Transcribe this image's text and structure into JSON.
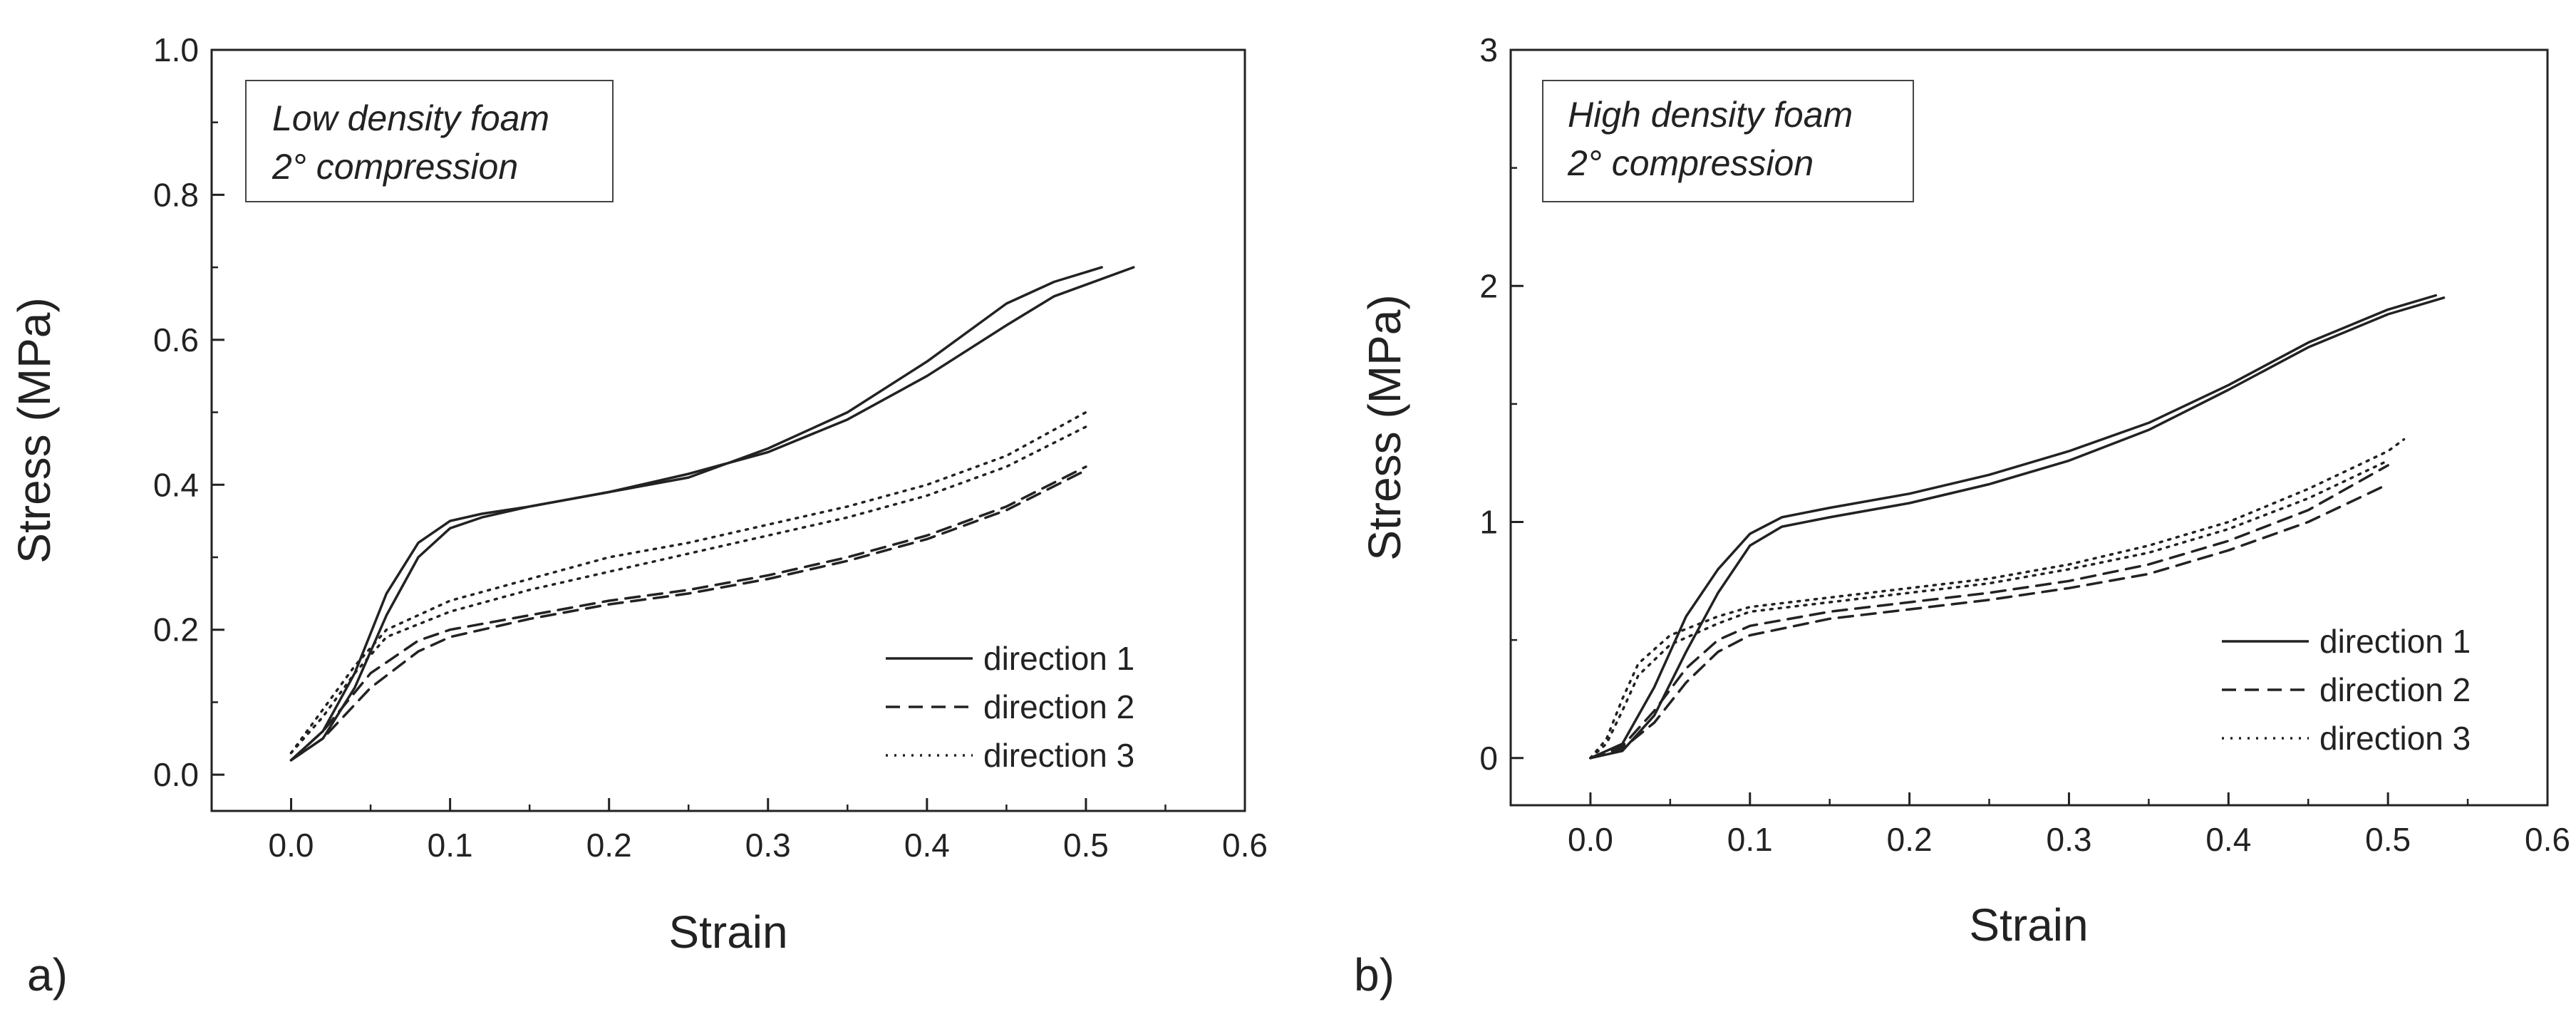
{
  "chart_data": [
    {
      "type": "line",
      "panel_label": "a)",
      "annotation": [
        "Low density foam",
        "2° compression"
      ],
      "xlabel": "Strain",
      "ylabel": "Stress (MPa)",
      "xlim": [
        -0.05,
        0.6
      ],
      "ylim": [
        -0.05,
        1.0
      ],
      "x_ticks": [
        0.0,
        0.1,
        0.2,
        0.3,
        0.4,
        0.5,
        0.6
      ],
      "x_tick_labels": [
        "0.0",
        "0.1",
        "0.2",
        "0.3",
        "0.4",
        "0.5",
        "0.6"
      ],
      "y_ticks": [
        0.0,
        0.2,
        0.4,
        0.6,
        0.8,
        1.0
      ],
      "y_tick_labels": [
        "0.0",
        "0.2",
        "0.4",
        "0.6",
        "0.8",
        "1.0"
      ],
      "legend": {
        "position": "bottom-right",
        "entries": [
          "direction 1",
          "direction 2",
          "direction 3"
        ]
      },
      "series": [
        {
          "name": "direction 1",
          "style": "solid",
          "replicate": 1,
          "x": [
            0.0,
            0.02,
            0.04,
            0.06,
            0.08,
            0.1,
            0.12,
            0.15,
            0.2,
            0.25,
            0.3,
            0.35,
            0.4,
            0.45,
            0.48,
            0.51
          ],
          "y": [
            0.02,
            0.06,
            0.14,
            0.25,
            0.32,
            0.35,
            0.36,
            0.37,
            0.39,
            0.41,
            0.45,
            0.5,
            0.57,
            0.65,
            0.68,
            0.7
          ]
        },
        {
          "name": "direction 1",
          "style": "solid",
          "replicate": 2,
          "x": [
            0.0,
            0.02,
            0.04,
            0.06,
            0.08,
            0.1,
            0.12,
            0.15,
            0.2,
            0.25,
            0.3,
            0.35,
            0.4,
            0.45,
            0.48,
            0.53
          ],
          "y": [
            0.02,
            0.05,
            0.12,
            0.22,
            0.3,
            0.34,
            0.355,
            0.37,
            0.39,
            0.415,
            0.445,
            0.49,
            0.55,
            0.62,
            0.66,
            0.7
          ]
        },
        {
          "name": "direction 2",
          "style": "dashed",
          "replicate": 1,
          "x": [
            0.0,
            0.02,
            0.05,
            0.08,
            0.1,
            0.15,
            0.2,
            0.25,
            0.3,
            0.35,
            0.4,
            0.45,
            0.5
          ],
          "y": [
            0.02,
            0.06,
            0.14,
            0.185,
            0.2,
            0.22,
            0.24,
            0.255,
            0.275,
            0.3,
            0.33,
            0.37,
            0.425
          ]
        },
        {
          "name": "direction 2",
          "style": "dashed",
          "replicate": 2,
          "x": [
            0.0,
            0.02,
            0.05,
            0.08,
            0.1,
            0.15,
            0.2,
            0.25,
            0.3,
            0.35,
            0.4,
            0.45,
            0.5
          ],
          "y": [
            0.02,
            0.05,
            0.12,
            0.17,
            0.19,
            0.215,
            0.235,
            0.25,
            0.27,
            0.295,
            0.325,
            0.365,
            0.42
          ]
        },
        {
          "name": "direction 3",
          "style": "dotted",
          "replicate": 1,
          "x": [
            0.0,
            0.02,
            0.04,
            0.06,
            0.1,
            0.15,
            0.2,
            0.25,
            0.3,
            0.35,
            0.4,
            0.45,
            0.5
          ],
          "y": [
            0.03,
            0.09,
            0.15,
            0.2,
            0.24,
            0.27,
            0.3,
            0.32,
            0.345,
            0.37,
            0.4,
            0.44,
            0.5
          ]
        },
        {
          "name": "direction 3",
          "style": "dotted",
          "replicate": 2,
          "x": [
            0.0,
            0.02,
            0.04,
            0.06,
            0.1,
            0.15,
            0.2,
            0.25,
            0.3,
            0.35,
            0.4,
            0.45,
            0.5
          ],
          "y": [
            0.03,
            0.08,
            0.14,
            0.19,
            0.225,
            0.255,
            0.28,
            0.305,
            0.33,
            0.355,
            0.385,
            0.425,
            0.48
          ]
        }
      ]
    },
    {
      "type": "line",
      "panel_label": "b)",
      "annotation": [
        "High density foam",
        "2° compression"
      ],
      "xlabel": "Strain",
      "ylabel": "Stress (MPa)",
      "xlim": [
        -0.05,
        0.6
      ],
      "ylim": [
        -0.2,
        3.0
      ],
      "x_ticks": [
        0.0,
        0.1,
        0.2,
        0.3,
        0.4,
        0.5,
        0.6
      ],
      "x_tick_labels": [
        "0.0",
        "0.1",
        "0.2",
        "0.3",
        "0.4",
        "0.5",
        "0.6"
      ],
      "y_ticks": [
        0,
        1,
        2,
        3
      ],
      "y_tick_labels": [
        "0",
        "1",
        "2",
        "3"
      ],
      "legend": {
        "position": "bottom-right",
        "entries": [
          "direction 1",
          "direction 2",
          "direction 3"
        ]
      },
      "series": [
        {
          "name": "direction 1",
          "style": "solid",
          "replicate": 1,
          "x": [
            0.0,
            0.02,
            0.04,
            0.06,
            0.08,
            0.1,
            0.12,
            0.15,
            0.2,
            0.25,
            0.3,
            0.35,
            0.4,
            0.45,
            0.5,
            0.53
          ],
          "y": [
            0.0,
            0.06,
            0.3,
            0.6,
            0.8,
            0.95,
            1.02,
            1.06,
            1.12,
            1.2,
            1.3,
            1.42,
            1.58,
            1.76,
            1.9,
            1.96
          ]
        },
        {
          "name": "direction 1",
          "style": "solid",
          "replicate": 2,
          "x": [
            0.0,
            0.02,
            0.04,
            0.06,
            0.08,
            0.1,
            0.12,
            0.15,
            0.2,
            0.25,
            0.3,
            0.35,
            0.4,
            0.45,
            0.5,
            0.535
          ],
          "y": [
            0.0,
            0.03,
            0.18,
            0.45,
            0.7,
            0.9,
            0.98,
            1.02,
            1.08,
            1.16,
            1.26,
            1.39,
            1.56,
            1.74,
            1.88,
            1.95
          ]
        },
        {
          "name": "direction 2",
          "style": "dashed",
          "replicate": 1,
          "x": [
            0.0,
            0.02,
            0.04,
            0.06,
            0.08,
            0.1,
            0.15,
            0.2,
            0.25,
            0.3,
            0.35,
            0.4,
            0.45,
            0.5
          ],
          "y": [
            0.0,
            0.05,
            0.2,
            0.38,
            0.5,
            0.56,
            0.62,
            0.66,
            0.7,
            0.75,
            0.82,
            0.92,
            1.05,
            1.24
          ]
        },
        {
          "name": "direction 2",
          "style": "dashed",
          "replicate": 2,
          "x": [
            0.0,
            0.02,
            0.04,
            0.06,
            0.08,
            0.1,
            0.15,
            0.2,
            0.25,
            0.3,
            0.35,
            0.4,
            0.45,
            0.5
          ],
          "y": [
            0.0,
            0.04,
            0.15,
            0.32,
            0.45,
            0.52,
            0.59,
            0.63,
            0.67,
            0.72,
            0.78,
            0.88,
            1.0,
            1.16
          ]
        },
        {
          "name": "direction 3",
          "style": "dotted",
          "replicate": 1,
          "x": [
            0.0,
            0.01,
            0.02,
            0.03,
            0.05,
            0.08,
            0.1,
            0.15,
            0.2,
            0.25,
            0.3,
            0.35,
            0.4,
            0.45,
            0.5,
            0.51
          ],
          "y": [
            0.0,
            0.08,
            0.25,
            0.4,
            0.52,
            0.6,
            0.64,
            0.68,
            0.72,
            0.76,
            0.82,
            0.9,
            1.0,
            1.14,
            1.3,
            1.35
          ]
        },
        {
          "name": "direction 3",
          "style": "dotted",
          "replicate": 2,
          "x": [
            0.0,
            0.01,
            0.02,
            0.03,
            0.05,
            0.08,
            0.1,
            0.15,
            0.2,
            0.25,
            0.3,
            0.35,
            0.4,
            0.45,
            0.5
          ],
          "y": [
            0.0,
            0.06,
            0.2,
            0.35,
            0.48,
            0.57,
            0.62,
            0.66,
            0.7,
            0.74,
            0.8,
            0.87,
            0.97,
            1.1,
            1.26
          ]
        }
      ]
    }
  ]
}
